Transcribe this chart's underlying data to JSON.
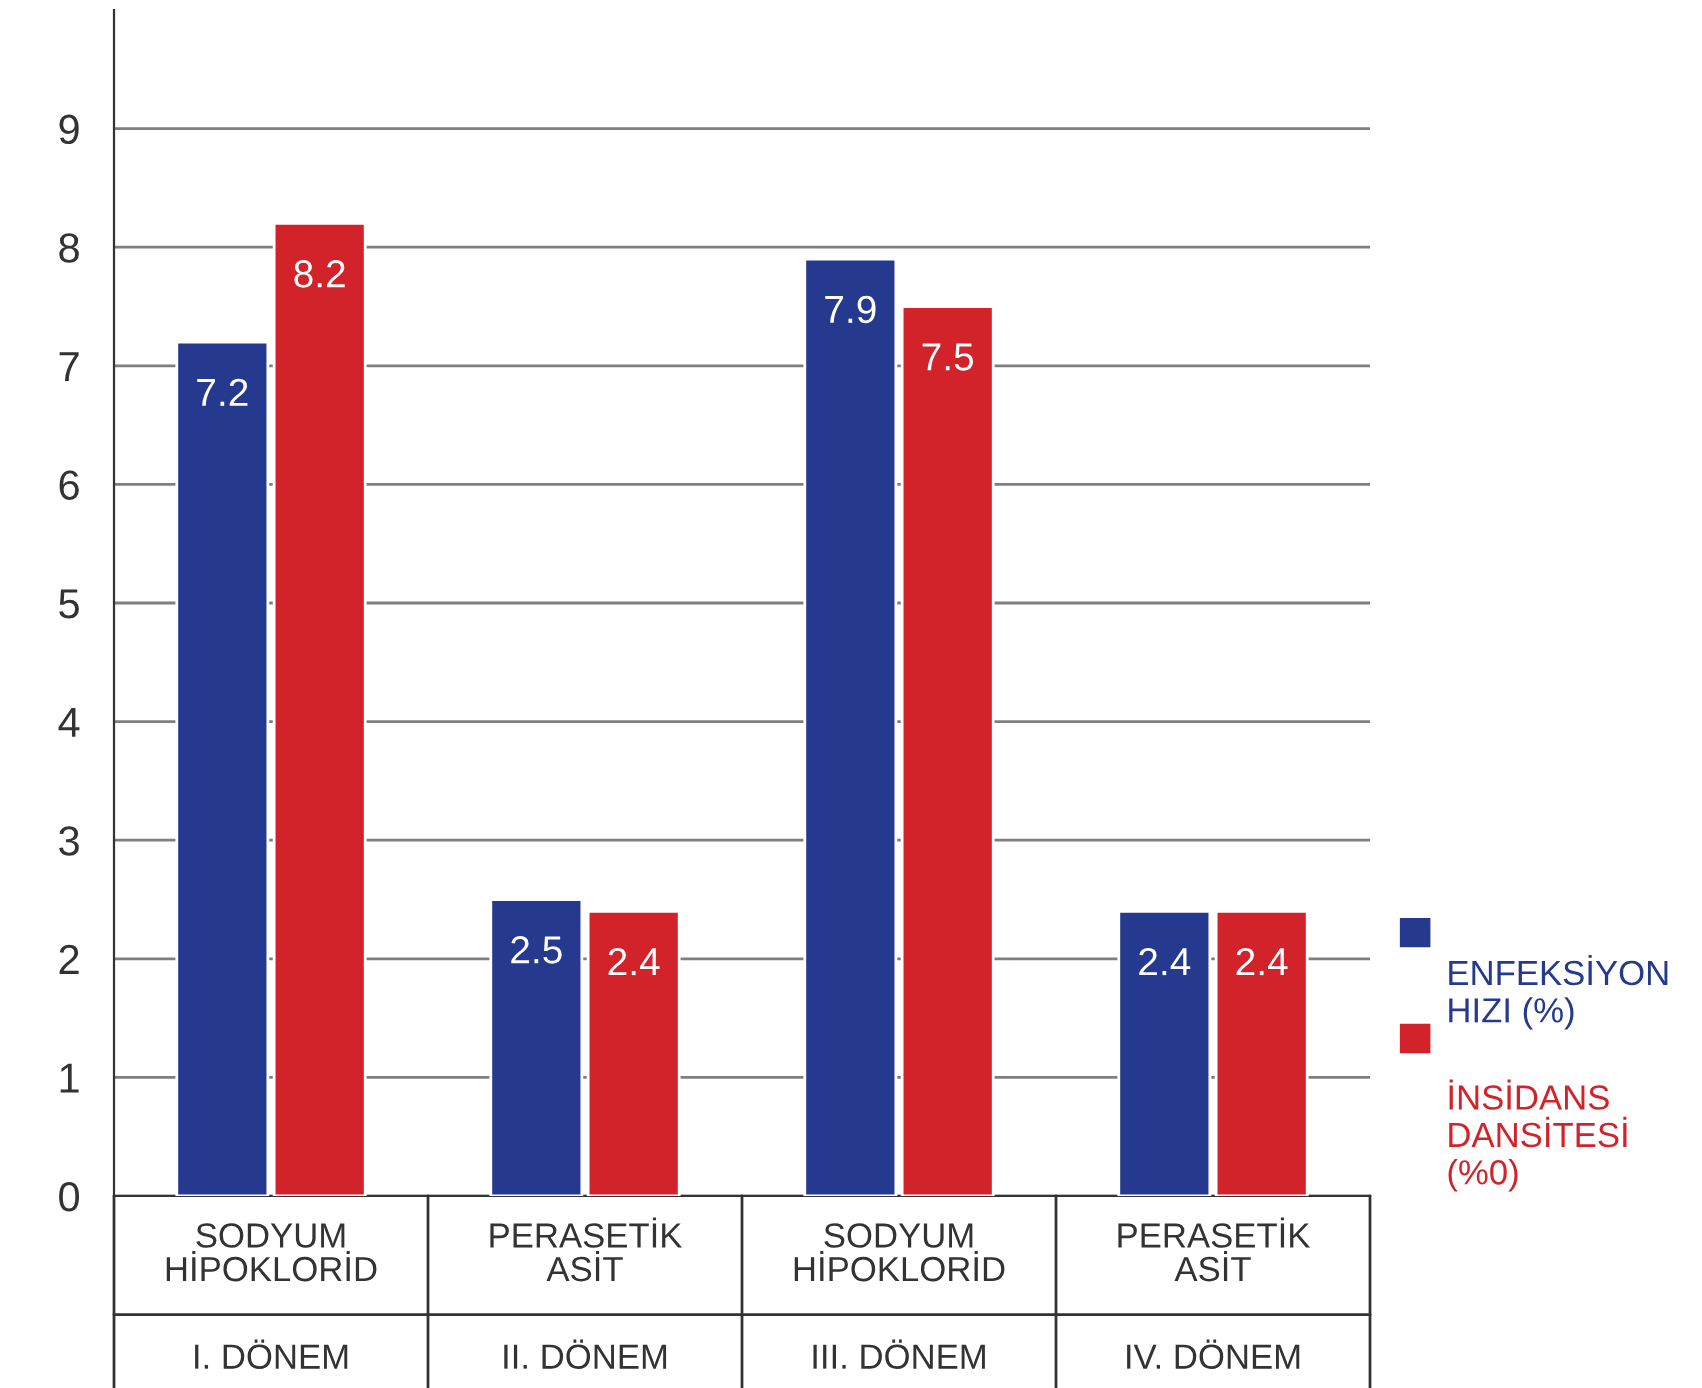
{
  "chart_data": {
    "type": "bar",
    "categories": [
      "SODYUM\nHİPOKLORİD\nI. DÖNEM",
      "PERASETİK\nASİT\nII. DÖNEM",
      "SODYUM\nHİPOKLORİD\nIII. DÖNEM",
      "PERASETİK\nASİT\nIV. DÖNEM"
    ],
    "series": [
      {
        "name": "ENFEKSİYON\nHIZI (%)",
        "color": "#253a8e",
        "values": [
          7.2,
          2.5,
          7.9,
          2.4
        ]
      },
      {
        "name": "İNSİDANS\nDANSİTESİ\n(%0)",
        "color": "#d2232a",
        "values": [
          8.2,
          2.4,
          7.5,
          2.4
        ]
      }
    ],
    "ylim": [
      0,
      10
    ],
    "yticks": [
      0,
      1,
      2,
      3,
      4,
      5,
      6,
      7,
      8,
      9
    ],
    "grid": "y",
    "legend": "right",
    "data_labels": true
  }
}
